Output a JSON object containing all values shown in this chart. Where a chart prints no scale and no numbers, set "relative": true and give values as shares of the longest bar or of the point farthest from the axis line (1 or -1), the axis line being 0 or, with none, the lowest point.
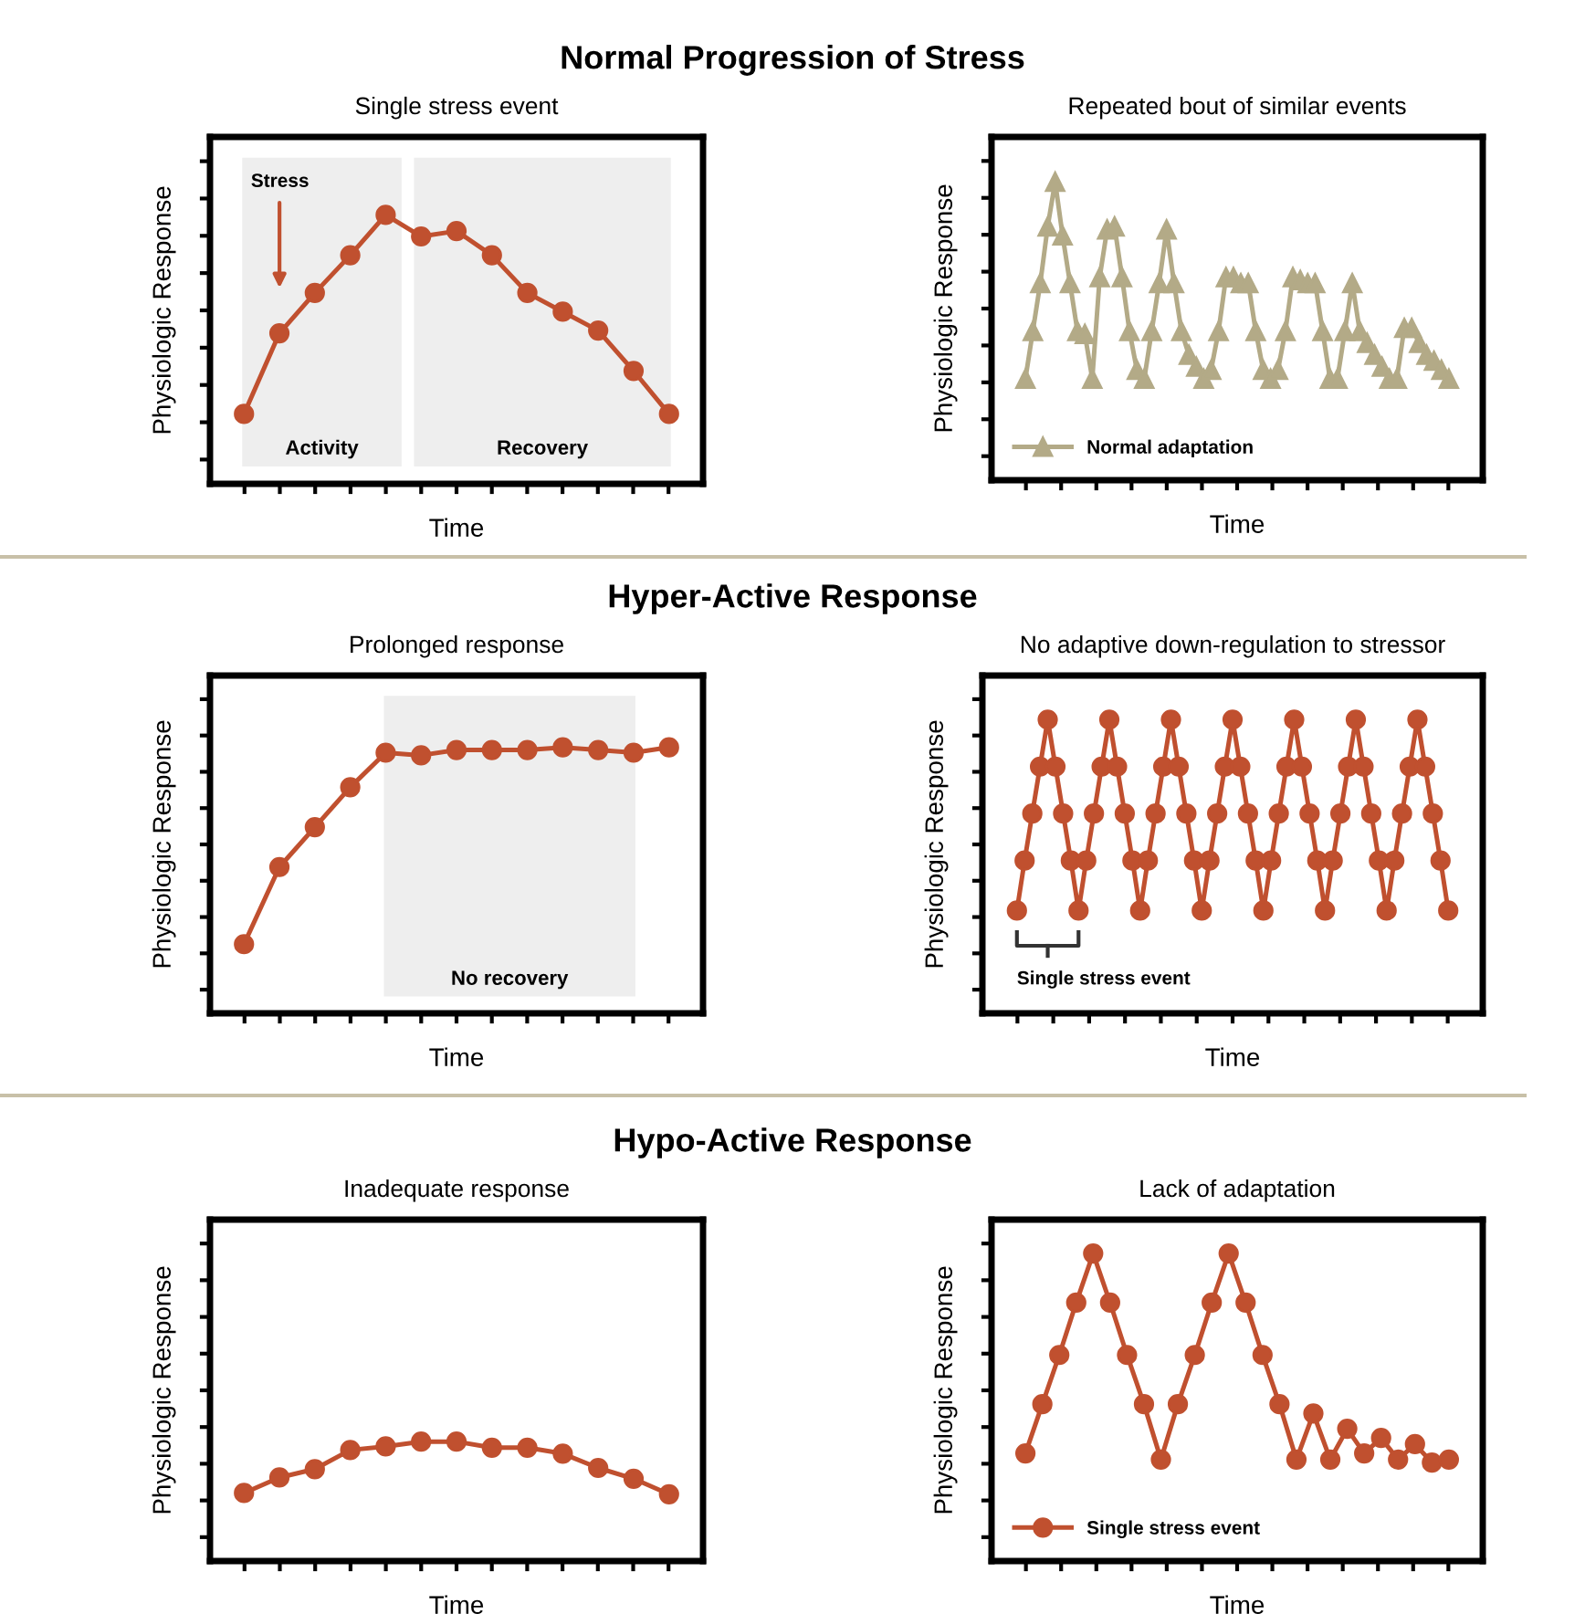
{
  "chart_data": [
    {
      "type": "line",
      "title": "Normal Progression of Stress",
      "subtitle": "Single stress event",
      "xlabel": "Time",
      "ylabel": "Physiologic Response",
      "relative": true,
      "marker": "circle",
      "categories": [
        null,
        null,
        null,
        null,
        null,
        null,
        null,
        null,
        null,
        null,
        null,
        null,
        null
      ],
      "series": [
        {
          "color": "#c0502f",
          "values": [
            0.26,
            0.56,
            0.71,
            0.85,
            1,
            0.92,
            0.94,
            0.85,
            0.71,
            0.64,
            0.57,
            0.42,
            0.26
          ]
        }
      ],
      "annotations": [
        "Stress",
        "Activity",
        "Recovery"
      ]
    },
    {
      "type": "line",
      "subtitle": "Repeated bout of similar events",
      "xlabel": "Time",
      "ylabel": "Physiologic Response",
      "relative": true,
      "marker": "triangle",
      "legend": "bottom left",
      "categories": [
        null,
        null,
        null,
        null,
        null,
        null,
        null,
        null,
        null,
        null,
        null,
        null,
        null,
        null,
        null,
        null,
        null,
        null,
        null,
        null,
        null,
        null,
        null,
        null,
        null,
        null,
        null,
        null,
        null,
        null,
        null,
        null,
        null,
        null,
        null,
        null,
        null,
        null,
        null,
        null,
        null,
        null,
        null,
        null,
        null,
        null,
        null,
        null,
        null,
        null,
        null,
        null,
        null,
        null,
        null,
        null,
        null,
        null
      ],
      "series": [
        {
          "name": "Normal adaptation",
          "color": "#b3aa87",
          "values": [
            0.34,
            0.5,
            0.66,
            0.85,
            1,
            0.82,
            0.66,
            0.5,
            0.49,
            0.34,
            0.68,
            0.84,
            0.85,
            0.68,
            0.5,
            0.37,
            0.34,
            0.5,
            0.66,
            0.84,
            0.66,
            0.5,
            0.42,
            0.38,
            0.34,
            0.37,
            0.5,
            0.68,
            0.68,
            0.66,
            0.66,
            0.5,
            0.37,
            0.34,
            0.37,
            0.5,
            0.68,
            0.67,
            0.66,
            0.66,
            0.5,
            0.34,
            0.34,
            0.5,
            0.66,
            0.5,
            0.46,
            0.42,
            0.38,
            0.34,
            0.34,
            0.51,
            0.51,
            0.46,
            0.42,
            0.4,
            0.37,
            0.34
          ]
        }
      ]
    },
    {
      "type": "line",
      "title": "Hyper-Active Response",
      "subtitle": "Prolonged response",
      "xlabel": "Time",
      "ylabel": "Physiologic Response",
      "relative": true,
      "marker": "circle",
      "categories": [
        null,
        null,
        null,
        null,
        null,
        null,
        null,
        null,
        null,
        null,
        null,
        null,
        null
      ],
      "series": [
        {
          "color": "#c0502f",
          "values": [
            0.26,
            0.55,
            0.7,
            0.85,
            0.98,
            0.97,
            0.99,
            0.99,
            0.99,
            1,
            0.99,
            0.98,
            1
          ]
        }
      ],
      "annotations": [
        "No recovery"
      ]
    },
    {
      "type": "line",
      "subtitle": "No adaptive down-regulation to stressor",
      "xlabel": "Time",
      "ylabel": "Physiologic Response",
      "relative": true,
      "marker": "circle",
      "categories": [
        null,
        null,
        null,
        null,
        null,
        null,
        null,
        null,
        null,
        null,
        null,
        null,
        null,
        null,
        null,
        null,
        null,
        null,
        null,
        null,
        null,
        null,
        null,
        null,
        null,
        null,
        null,
        null,
        null,
        null,
        null,
        null,
        null,
        null,
        null,
        null,
        null,
        null,
        null,
        null,
        null,
        null,
        null,
        null,
        null,
        null,
        null,
        null,
        null,
        null,
        null,
        null,
        null,
        null,
        null,
        null,
        null
      ],
      "series": [
        {
          "color": "#c0502f",
          "values": [
            0.35,
            0.52,
            0.68,
            0.84,
            1,
            0.84,
            0.68,
            0.52,
            0.35,
            0.52,
            0.68,
            0.84,
            1,
            0.84,
            0.68,
            0.52,
            0.35,
            0.52,
            0.68,
            0.84,
            1,
            0.84,
            0.68,
            0.52,
            0.35,
            0.52,
            0.68,
            0.84,
            1,
            0.84,
            0.68,
            0.52,
            0.35,
            0.52,
            0.68,
            0.84,
            1,
            0.84,
            0.68,
            0.52,
            0.35,
            0.52,
            0.68,
            0.84,
            1,
            0.84,
            0.68,
            0.52,
            0.35,
            0.52,
            0.68,
            0.84,
            1,
            0.84,
            0.68,
            0.52,
            0.35
          ]
        }
      ],
      "annotations": [
        "Single stress event"
      ]
    },
    {
      "type": "line",
      "title": "Hypo-Active Response",
      "subtitle": "Inadequate response",
      "xlabel": "Time",
      "ylabel": "Physiologic Response",
      "relative": true,
      "marker": "circle",
      "categories": [
        null,
        null,
        null,
        null,
        null,
        null,
        null,
        null,
        null,
        null,
        null,
        null,
        null
      ],
      "series": [
        {
          "color": "#c0502f",
          "values": [
            0.57,
            0.7,
            0.77,
            0.93,
            0.96,
            1,
            1,
            0.95,
            0.95,
            0.9,
            0.78,
            0.69,
            0.56
          ]
        }
      ]
    },
    {
      "type": "line",
      "subtitle": "Lack of adaptation",
      "xlabel": "Time",
      "ylabel": "Physiologic Response",
      "relative": true,
      "marker": "circle",
      "legend": "bottom left",
      "categories": [
        null,
        null,
        null,
        null,
        null,
        null,
        null,
        null,
        null,
        null,
        null,
        null,
        null,
        null,
        null,
        null,
        null,
        null,
        null,
        null,
        null,
        null,
        null,
        null,
        null,
        null
      ],
      "series": [
        {
          "name": "Single stress event",
          "color": "#c0502f",
          "values": [
            0.35,
            0.51,
            0.67,
            0.84,
            1,
            0.84,
            0.67,
            0.51,
            0.33,
            0.51,
            0.67,
            0.84,
            1,
            0.84,
            0.67,
            0.51,
            0.33,
            0.48,
            0.33,
            0.43,
            0.35,
            0.4,
            0.33,
            0.38,
            0.32,
            0.33
          ]
        }
      ]
    }
  ]
}
